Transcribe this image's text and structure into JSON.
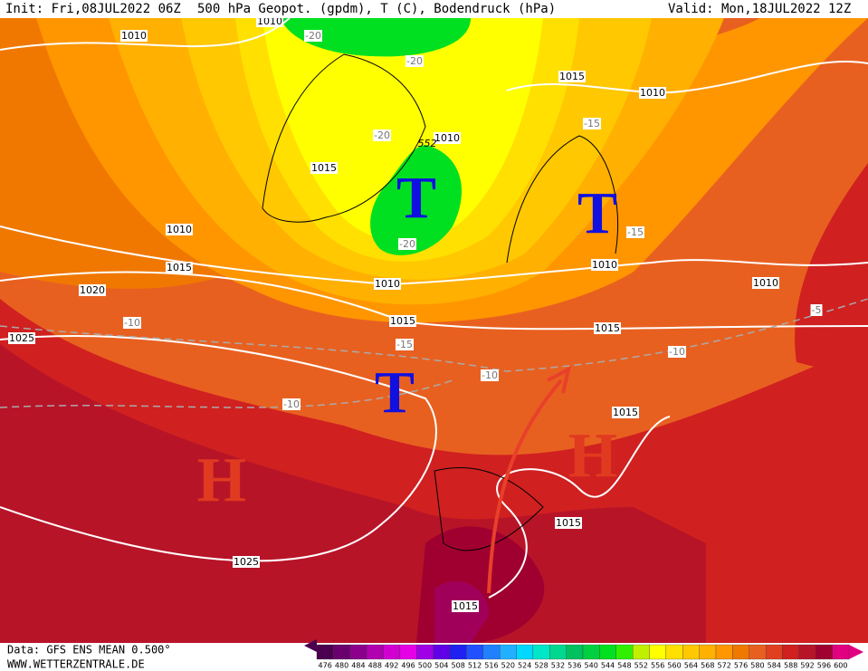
{
  "header": {
    "init": "Init: Fri,08JUL2022 06Z",
    "title": "500 hPa Geopot. (gpdm), T (C), Bodendruck (hPa)",
    "valid": "Valid: Mon,18JUL2022 12Z"
  },
  "footer": {
    "data": "Data: GFS ENS MEAN 0.500°",
    "site": "WWW.WETTERZENTRALE.DE"
  },
  "colorbar": {
    "levels": [
      476,
      480,
      484,
      488,
      492,
      496,
      500,
      504,
      508,
      512,
      516,
      520,
      524,
      528,
      532,
      536,
      540,
      544,
      548,
      552,
      556,
      560,
      564,
      568,
      572,
      576,
      580,
      584,
      588,
      592,
      596,
      600
    ],
    "colors": [
      "#4b0050",
      "#6a006e",
      "#8c008c",
      "#b000b0",
      "#d000d0",
      "#e600e6",
      "#a000e6",
      "#6000e6",
      "#2020f0",
      "#2050ff",
      "#2080ff",
      "#20b0ff",
      "#00d8ff",
      "#00e6c8",
      "#00d890",
      "#00c060",
      "#00d040",
      "#00e020",
      "#30f000",
      "#c0f000",
      "#ffff00",
      "#ffe000",
      "#ffc800",
      "#ffb000",
      "#ff9600",
      "#f07800",
      "#e86020",
      "#e04020",
      "#d02020",
      "#b81428",
      "#a00030",
      "#e00080"
    ]
  },
  "systems": [
    "T",
    "T",
    "T",
    "H",
    "H"
  ],
  "isobar_labels": [
    1010,
    1010,
    1015,
    1010,
    1010,
    1015,
    1010,
    1015,
    1010,
    1010,
    1020,
    1010,
    1015,
    1015,
    1025,
    1015,
    1015,
    1025,
    1015
  ],
  "temperature_labels": [
    -20,
    -20,
    -20,
    -15,
    -20,
    -15,
    -10,
    -15,
    -10,
    -10,
    -10,
    -5
  ],
  "contour_label": 552
}
